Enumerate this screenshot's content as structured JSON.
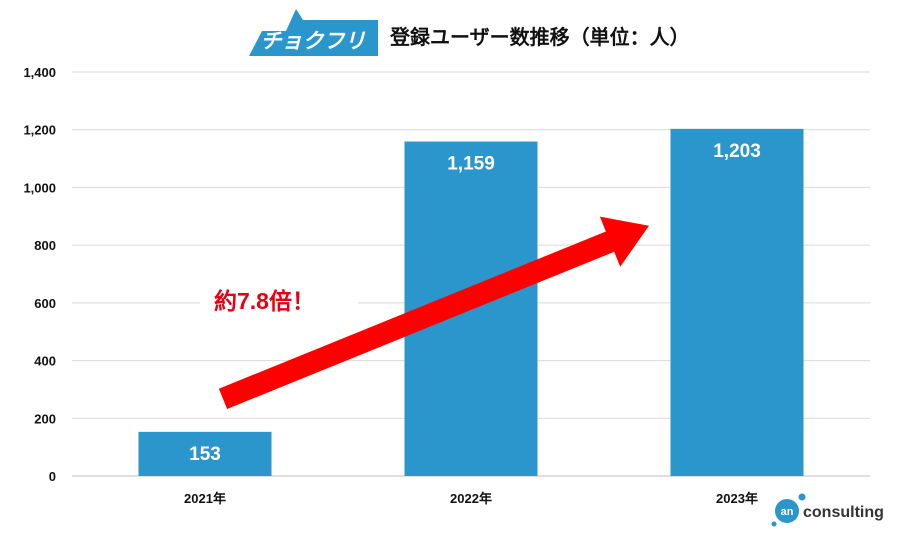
{
  "brand": {
    "logo_text": "チョクフリ",
    "logo_color": "#2a96cc"
  },
  "footer_brand": {
    "mark_text": "an",
    "name": "consulting",
    "color": "#2a96cc"
  },
  "annotation": {
    "text": "約7.8倍！",
    "color": "#e60012",
    "arrow_color": "#ff0000"
  },
  "chart_data": {
    "type": "bar",
    "title": "登録ユーザー数推移（単位：人）",
    "categories": [
      "2021年",
      "2022年",
      "2023年"
    ],
    "series": [
      {
        "values": [
          153,
          1159,
          1203
        ],
        "data_labels": [
          "153",
          "1,159",
          "1,203"
        ]
      }
    ],
    "ylim": [
      0,
      1400
    ],
    "yticks": [
      0,
      200,
      400,
      600,
      800,
      1000,
      1200,
      1400
    ],
    "ytick_labels": [
      "0",
      "200",
      "400",
      "600",
      "800",
      "1,000",
      "1,200",
      "1,400"
    ],
    "grid": true,
    "bar_color": "#2a96cc",
    "grid_color": "#d9d9d9",
    "xlabel": "",
    "ylabel": ""
  }
}
